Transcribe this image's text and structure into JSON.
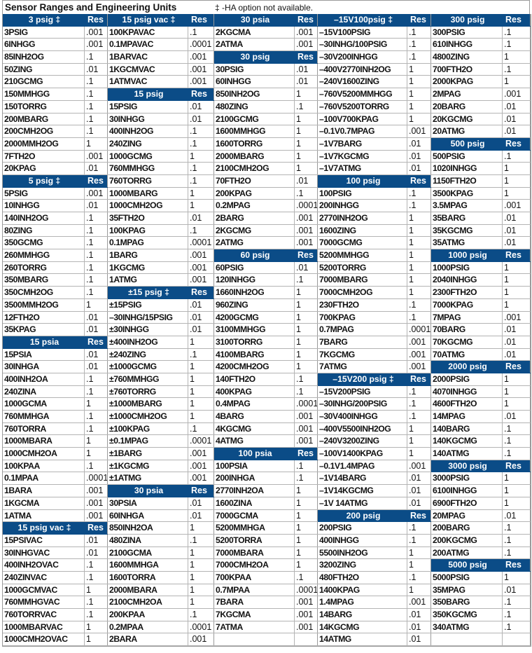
{
  "title": "Sensor Ranges and Engineering Units",
  "note": "‡ -HA option not available.",
  "colors": {
    "header_bg": "#0b4c87",
    "header_text": "#ffffff"
  },
  "columns": [
    [
      {
        "h": "3 psig ‡",
        "r": "Res"
      },
      [
        "3PSIG",
        ".001"
      ],
      [
        "6INHGG",
        ".001"
      ],
      [
        "85INH2OG",
        ".1"
      ],
      [
        "50ZING",
        ".01"
      ],
      [
        "210GCMG",
        ".1"
      ],
      [
        "150MMHGG",
        ".1"
      ],
      [
        "150TORRG",
        ".1"
      ],
      [
        "200MBARG",
        ".1"
      ],
      [
        "200CMH2OG",
        ".1"
      ],
      [
        "2000MMH2OG",
        "1"
      ],
      [
        "7FTH2O",
        ".001"
      ],
      [
        "20KPAG",
        ".01"
      ],
      {
        "h": "5 psig ‡",
        "r": "Res"
      },
      [
        "5PSIG",
        ".001"
      ],
      [
        "10INHGG",
        ".01"
      ],
      [
        "140INH2OG",
        ".1"
      ],
      [
        "80ZING",
        ".1"
      ],
      [
        "350GCMG",
        ".1"
      ],
      [
        "260MMHGG",
        ".1"
      ],
      [
        "260TORRG",
        ".1"
      ],
      [
        "350MBARG",
        ".1"
      ],
      [
        "350CMH2OG",
        ".1"
      ],
      [
        "3500MMH2OG",
        "1"
      ],
      [
        "12FTH2O",
        ".01"
      ],
      [
        "35KPAG",
        ".01"
      ],
      {
        "h": "15 psia",
        "r": "Res"
      },
      [
        "15PSIA",
        ".01"
      ],
      [
        "30INHGA",
        ".01"
      ],
      [
        "400INH2OA",
        ".1"
      ],
      [
        "240ZINA",
        ".1"
      ],
      [
        "1000GCMA",
        "1"
      ],
      [
        "760MMHGA",
        ".1"
      ],
      [
        "760TORRA",
        ".1"
      ],
      [
        "1000MBARA",
        "1"
      ],
      [
        "1000CMH2OA",
        "1"
      ],
      [
        "100KPAA",
        ".1"
      ],
      [
        "0.1MPAA",
        ".0001"
      ],
      [
        "1BARA",
        ".001"
      ],
      [
        "1KGCMA",
        ".001"
      ],
      [
        "1ATMA",
        ".001"
      ],
      {
        "h": "15 psig vac ‡",
        "r": "Res"
      },
      [
        "15PSIVAC",
        ".01"
      ],
      [
        "30INHGVAC",
        ".01"
      ],
      [
        "400INH2OVAC",
        ".1"
      ],
      [
        "240ZINVAC",
        ".1"
      ],
      [
        "1000GCMVAC",
        "1"
      ],
      [
        "760MMHGVAC",
        ".1"
      ],
      [
        "760TORRVAC",
        ".1"
      ],
      [
        "1000MBARVAC",
        "1"
      ],
      [
        "1000CMH2OVAC",
        "1"
      ]
    ],
    [
      {
        "h": "15 psig vac ‡",
        "r": "Res"
      },
      [
        "100KPAVAC",
        ".1"
      ],
      [
        "0.1MPAVAC",
        ".0001"
      ],
      [
        "1BARVAC",
        ".001"
      ],
      [
        "1KGCMVAC",
        ".001"
      ],
      [
        "1ATMVAC",
        ".001"
      ],
      {
        "h": "15 psig",
        "r": "Res"
      },
      [
        "15PSIG",
        ".01"
      ],
      [
        "30INHGG",
        ".01"
      ],
      [
        "400INH2OG",
        ".1"
      ],
      [
        "240ZING",
        ".1"
      ],
      [
        "1000GCMG",
        "1"
      ],
      [
        "760MMHGG",
        ".1"
      ],
      [
        "760TORRG",
        ".1"
      ],
      [
        "1000MBARG",
        "1"
      ],
      [
        "1000CMH2OG",
        "1"
      ],
      [
        "35FTH2O",
        ".01"
      ],
      [
        "100KPAG",
        ".1"
      ],
      [
        "0.1MPAG",
        ".0001"
      ],
      [
        "1BARG",
        ".001"
      ],
      [
        "1KGCMG",
        ".001"
      ],
      [
        "1ATMG",
        ".001"
      ],
      {
        "h": "±15 psig ‡",
        "r": "Res"
      },
      [
        "±15PSIG",
        ".01"
      ],
      [
        "–30INHG/15PSIG",
        ".01"
      ],
      [
        "±30INHGG",
        ".01"
      ],
      [
        "±400INH2OG",
        "1"
      ],
      [
        "±240ZING",
        ".1"
      ],
      [
        "±1000GCMG",
        "1"
      ],
      [
        "±760MMHGG",
        "1"
      ],
      [
        "±760TORRG",
        "1"
      ],
      [
        "±1000MBARG",
        "1"
      ],
      [
        "±1000CMH2OG",
        "1"
      ],
      [
        "±100KPAG",
        ".1"
      ],
      [
        "±0.1MPAG",
        ".0001"
      ],
      [
        "±1BARG",
        ".001"
      ],
      [
        "±1KGCMG",
        ".001"
      ],
      [
        "±1ATMG",
        ".001"
      ],
      {
        "h": "30 psia",
        "r": "Res"
      },
      [
        "30PSIA",
        ".01"
      ],
      [
        "60INHGA",
        ".01"
      ],
      [
        "850INH2OA",
        "1"
      ],
      [
        "480ZINA",
        ".1"
      ],
      [
        "2100GCMA",
        "1"
      ],
      [
        "1600MMHGA",
        "1"
      ],
      [
        "1600TORRA",
        "1"
      ],
      [
        "2000MBARA",
        "1"
      ],
      [
        "2100CMH2OA",
        "1"
      ],
      [
        "200KPAA",
        ".1"
      ],
      [
        "0.2MPAA",
        ".0001"
      ],
      [
        "2BARA",
        ".001"
      ]
    ],
    [
      {
        "h": "30 psia",
        "r": "Res"
      },
      [
        "2KGCMA",
        ".001"
      ],
      [
        "2ATMA",
        ".001"
      ],
      {
        "h": "30 psig",
        "r": "Res"
      },
      [
        "30PSIG",
        ".01"
      ],
      [
        "60INHGG",
        ".01"
      ],
      [
        "850INH2OG",
        "1"
      ],
      [
        "480ZING",
        ".1"
      ],
      [
        "2100GCMG",
        "1"
      ],
      [
        "1600MMHGG",
        "1"
      ],
      [
        "1600TORRG",
        "1"
      ],
      [
        "2000MBARG",
        "1"
      ],
      [
        "2100CMH2OG",
        "1"
      ],
      [
        "70FTH2O",
        ".01"
      ],
      [
        "200KPAG",
        ".1"
      ],
      [
        "0.2MPAG",
        ".0001"
      ],
      [
        "2BARG",
        ".001"
      ],
      [
        "2KGCMG",
        ".001"
      ],
      [
        "2ATMG",
        ".001"
      ],
      {
        "h": "60 psig",
        "r": "Res"
      },
      [
        "60PSIG",
        ".01"
      ],
      [
        "120INHGG",
        ".1"
      ],
      [
        "1660INH2OG",
        "1"
      ],
      [
        "960ZING",
        "1"
      ],
      [
        "4200GCMG",
        "1"
      ],
      [
        "3100MMHGG",
        "1"
      ],
      [
        "3100TORRG",
        "1"
      ],
      [
        "4100MBARG",
        "1"
      ],
      [
        "4200CMH2OG",
        "1"
      ],
      [
        "140FTH2O",
        ".1"
      ],
      [
        "400KPAG",
        ".1"
      ],
      [
        "0.4MPAG",
        ".0001"
      ],
      [
        "4BARG",
        ".001"
      ],
      [
        "4KGCMG",
        ".001"
      ],
      [
        "4ATMG",
        ".001"
      ],
      {
        "h": "100 psia",
        "r": "Res"
      },
      [
        "100PSIA",
        ".1"
      ],
      [
        "200INHGA",
        ".1"
      ],
      [
        "2770INH2OA",
        "1"
      ],
      [
        "1600ZINA",
        "1"
      ],
      [
        "7000GCMA",
        "1"
      ],
      [
        "5200MMHGA",
        "1"
      ],
      [
        "5200TORRA",
        "1"
      ],
      [
        "7000MBARA",
        "1"
      ],
      [
        "7000CMH2OA",
        "1"
      ],
      [
        "700KPAA",
        ".1"
      ],
      [
        "0.7MPAA",
        ".0001"
      ],
      [
        "7BARA",
        ".001"
      ],
      [
        "7KGCMA",
        ".001"
      ],
      [
        "7ATMA",
        ".001"
      ],
      [
        "",
        ""
      ]
    ],
    [
      {
        "h": "–15V100psig ‡",
        "r": "Res"
      },
      [
        "–15V100PSIG",
        ".1"
      ],
      [
        "–30INHG/100PSIG",
        ".1"
      ],
      [
        "–30V200INHGG",
        ".1"
      ],
      [
        "–400V2770INH2OG",
        "1"
      ],
      [
        "–240V1600ZING",
        "1"
      ],
      [
        "–760V5200MMHGG",
        "1"
      ],
      [
        "–760V5200TORRG",
        "1"
      ],
      [
        "–100V700KPAG",
        "1"
      ],
      [
        "–0.1V0.7MPAG",
        ".001"
      ],
      [
        "–1V7BARG",
        ".01"
      ],
      [
        "–1V7KGCMG",
        ".01"
      ],
      [
        "–1V7ATMG",
        ".01"
      ],
      {
        "h": "100 psig",
        "r": "Res"
      },
      [
        "100PSIG",
        ".1"
      ],
      [
        "200INHGG",
        ".1"
      ],
      [
        "2770INH2OG",
        "1"
      ],
      [
        "1600ZING",
        "1"
      ],
      [
        "7000GCMG",
        "1"
      ],
      [
        "5200MMHGG",
        "1"
      ],
      [
        "5200TORRG",
        "1"
      ],
      [
        "7000MBARG",
        "1"
      ],
      [
        "7000CMH2OG",
        "1"
      ],
      [
        "230FTH2O",
        ".1"
      ],
      [
        "700KPAG",
        ".1"
      ],
      [
        "0.7MPAG",
        ".0001"
      ],
      [
        "7BARG",
        ".001"
      ],
      [
        "7KGCMG",
        ".001"
      ],
      [
        "7ATMG",
        ".001"
      ],
      {
        "h": "–15V200 psig ‡",
        "r": "Res"
      },
      [
        "–15V200PSIG",
        ".1"
      ],
      [
        "–30INHG/200PSIG",
        ".1"
      ],
      [
        "–30V400INHGG",
        ".1"
      ],
      [
        "–400V5500INH2OG",
        "1"
      ],
      [
        "–240V3200ZING",
        "1"
      ],
      [
        "–100V1400KPAG",
        "1"
      ],
      [
        "–0.1V1.4MPAG",
        ".001"
      ],
      [
        "–1V14BARG",
        ".01"
      ],
      [
        "–1V14KGCMG",
        ".01"
      ],
      [
        "–1V 14ATMG",
        ".01"
      ],
      {
        "h": "200 psig",
        "r": "Res"
      },
      [
        "200PSIG",
        ".1"
      ],
      [
        "400INHGG",
        ".1"
      ],
      [
        "5500INH2OG",
        "1"
      ],
      [
        "3200ZING",
        "1"
      ],
      [
        "480FTH2O",
        ".1"
      ],
      [
        "1400KPAG",
        "1"
      ],
      [
        "1.4MPAG",
        ".001"
      ],
      [
        "14BARG",
        ".01"
      ],
      [
        "14KGCMG",
        ".01"
      ],
      [
        "14ATMG",
        ".01"
      ]
    ],
    [
      {
        "h": "300 psig",
        "r": "Res"
      },
      [
        "300PSIG",
        ".1"
      ],
      [
        "610INHGG",
        ".1"
      ],
      [
        "4800ZING",
        "1"
      ],
      [
        "700FTH2O",
        ".1"
      ],
      [
        "2000KPAG",
        "1"
      ],
      [
        "2MPAG",
        ".001"
      ],
      [
        "20BARG",
        ".01"
      ],
      [
        "20KGCMG",
        ".01"
      ],
      [
        "20ATMG",
        ".01"
      ],
      {
        "h": "500 psig",
        "r": "Res"
      },
      [
        "500PSIG",
        ".1"
      ],
      [
        "1020INHGG",
        "1"
      ],
      [
        "1150FTH2O",
        "1"
      ],
      [
        "3500KPAG",
        "1"
      ],
      [
        "3.5MPAG",
        ".001"
      ],
      [
        "35BARG",
        ".01"
      ],
      [
        "35KGCMG",
        ".01"
      ],
      [
        "35ATMG",
        ".01"
      ],
      {
        "h": "1000 psig",
        "r": "Res"
      },
      [
        "1000PSIG",
        "1"
      ],
      [
        "2040INHGG",
        "1"
      ],
      [
        "2300FTH2O",
        "1"
      ],
      [
        "7000KPAG",
        "1"
      ],
      [
        "7MPAG",
        ".001"
      ],
      [
        "70BARG",
        ".01"
      ],
      [
        "70KGCMG",
        ".01"
      ],
      [
        "70ATMG",
        ".01"
      ],
      {
        "h": "2000 psig",
        "r": "Res"
      },
      [
        "2000PSIG",
        "1"
      ],
      [
        "4070INHGG",
        "1"
      ],
      [
        "4600FTH2O",
        "1"
      ],
      [
        "14MPAG",
        ".01"
      ],
      [
        "140BARG",
        ".1"
      ],
      [
        "140KGCMG",
        ".1"
      ],
      [
        "140ATMG",
        ".1"
      ],
      {
        "h": "3000 psig",
        "r": "Res"
      },
      [
        "3000PSIG",
        "1"
      ],
      [
        "6100INHGG",
        "1"
      ],
      [
        "6900FTH2O",
        "1"
      ],
      [
        "20MPAG",
        ".01"
      ],
      [
        "200BARG",
        ".1"
      ],
      [
        "200KGCMG",
        ".1"
      ],
      [
        "200ATMG",
        ".1"
      ],
      {
        "h": "5000 psig",
        "r": "Res"
      },
      [
        "5000PSIG",
        "1"
      ],
      [
        "35MPAG",
        ".01"
      ],
      [
        "350BARG",
        ".1"
      ],
      [
        "350KGCMG",
        ".1"
      ],
      [
        "340ATMG",
        ".1"
      ],
      [
        "",
        ""
      ]
    ]
  ]
}
